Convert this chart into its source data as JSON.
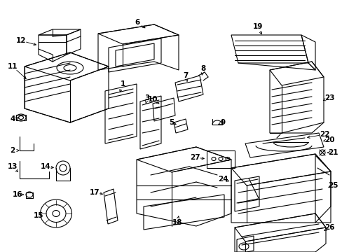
{
  "bg_color": "#ffffff",
  "line_color": "#000000",
  "text_color": "#000000",
  "fig_width": 4.89,
  "fig_height": 3.6,
  "dpi": 100
}
